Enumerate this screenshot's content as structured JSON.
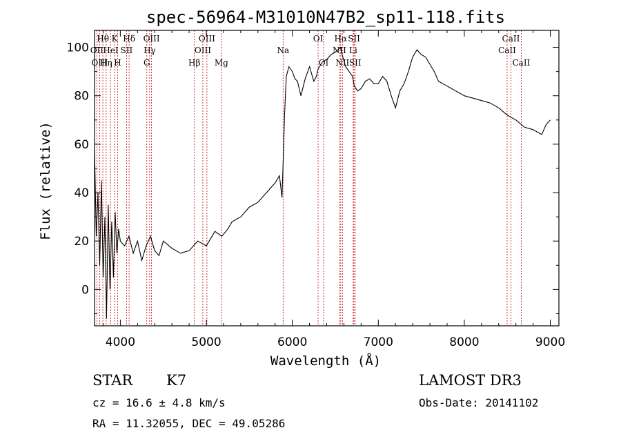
{
  "chart_data": {
    "type": "line",
    "title": "spec-56964-M31010N47B2_sp11-118.fits",
    "xlabel": "Wavelength (Å)",
    "ylabel": "Flux (relative)",
    "xlim": [
      3700,
      9100
    ],
    "ylim": [
      -15,
      107
    ],
    "xticks": [
      4000,
      5000,
      6000,
      7000,
      8000,
      9000
    ],
    "yticks": [
      0,
      20,
      40,
      60,
      80,
      100
    ],
    "grid": false,
    "series": [
      {
        "name": "spectrum",
        "x": [
          3700,
          3720,
          3740,
          3760,
          3780,
          3800,
          3820,
          3840,
          3860,
          3880,
          3900,
          3920,
          3940,
          3960,
          3980,
          4000,
          4050,
          4100,
          4150,
          4200,
          4250,
          4300,
          4350,
          4400,
          4450,
          4500,
          4600,
          4700,
          4800,
          4900,
          5000,
          5100,
          5180,
          5250,
          5300,
          5400,
          5500,
          5600,
          5700,
          5800,
          5850,
          5880,
          5900,
          5910,
          5930,
          5960,
          6000,
          6030,
          6060,
          6100,
          6150,
          6200,
          6250,
          6280,
          6300,
          6350,
          6400,
          6450,
          6500,
          6530,
          6560,
          6580,
          6620,
          6660,
          6700,
          6720,
          6760,
          6800,
          6850,
          6900,
          6950,
          7000,
          7050,
          7100,
          7150,
          7200,
          7250,
          7300,
          7350,
          7400,
          7450,
          7500,
          7550,
          7600,
          7650,
          7700,
          7800,
          7900,
          8000,
          8100,
          8200,
          8300,
          8400,
          8500,
          8600,
          8700,
          8800,
          8900,
          8950,
          9000
        ],
        "y": [
          58,
          22,
          40,
          10,
          45,
          5,
          30,
          -12,
          35,
          0,
          28,
          5,
          32,
          15,
          25,
          20,
          18,
          22,
          15,
          20,
          12,
          18,
          22,
          16,
          14,
          20,
          17,
          15,
          16,
          20,
          18,
          24,
          22,
          25,
          28,
          30,
          34,
          36,
          40,
          44,
          47,
          38,
          60,
          72,
          88,
          92,
          90,
          87,
          86,
          80,
          87,
          92,
          86,
          88,
          91,
          94,
          95,
          97,
          98,
          99,
          100,
          97,
          92,
          90,
          88,
          84,
          82,
          83,
          86,
          87,
          85,
          85,
          88,
          86,
          80,
          75,
          82,
          85,
          90,
          96,
          99,
          97,
          96,
          93,
          90,
          86,
          84,
          82,
          80,
          79,
          78,
          77,
          75,
          72,
          70,
          67,
          66,
          64,
          68,
          70
        ]
      }
    ],
    "lines": [
      {
        "label": "Hθ",
        "x": 3797,
        "row": 0
      },
      {
        "label": "OII",
        "x": 3727,
        "row": 1
      },
      {
        "label": "OIII",
        "x": 3760,
        "row": 2
      },
      {
        "label": "K",
        "x": 3934,
        "row": 0
      },
      {
        "label": "HeI",
        "x": 3889,
        "row": 1
      },
      {
        "label": "Hη",
        "x": 3835,
        "row": 2
      },
      {
        "label": "Hδ",
        "x": 4102,
        "row": 0
      },
      {
        "label": "SII",
        "x": 4072,
        "row": 1
      },
      {
        "label": "H",
        "x": 3969,
        "row": 2
      },
      {
        "label": "OIII",
        "x": 4363,
        "row": 0
      },
      {
        "label": "Hγ",
        "x": 4341,
        "row": 1
      },
      {
        "label": "G",
        "x": 4308,
        "row": 2
      },
      {
        "label": "OIII",
        "x": 5007,
        "row": 0
      },
      {
        "label": "OIII",
        "x": 4959,
        "row": 1
      },
      {
        "label": "Hβ",
        "x": 4861,
        "row": 2
      },
      {
        "label": "Mg",
        "x": 5175,
        "row": 2
      },
      {
        "label": "Na",
        "x": 5893,
        "row": 1
      },
      {
        "label": "OI",
        "x": 6300,
        "row": 0
      },
      {
        "label": "OI",
        "x": 6364,
        "row": 2
      },
      {
        "label": "Hα",
        "x": 6563,
        "row": 0
      },
      {
        "label": "NII",
        "x": 6548,
        "row": 1
      },
      {
        "label": "NII",
        "x": 6583,
        "row": 2
      },
      {
        "label": "SII",
        "x": 6717,
        "row": 0
      },
      {
        "label": "Li",
        "x": 6708,
        "row": 1
      },
      {
        "label": "SII",
        "x": 6731,
        "row": 2
      },
      {
        "label": "CaII",
        "x": 8542,
        "row": 0
      },
      {
        "label": "CaII",
        "x": 8498,
        "row": 1
      },
      {
        "label": "CaII",
        "x": 8662,
        "row": 2
      }
    ]
  },
  "info": {
    "class": "STAR",
    "subclass": "K7",
    "survey": "LAMOST DR3",
    "cz": "cz = 16.6 ± 4.8 km/s",
    "obs_date": "Obs-Date: 20141102",
    "coords": "RA =  11.32055, DEC =  49.05286"
  },
  "colors": {
    "spectrum": "#000000",
    "line_marker": "#cc0000",
    "axes": "#000000"
  }
}
